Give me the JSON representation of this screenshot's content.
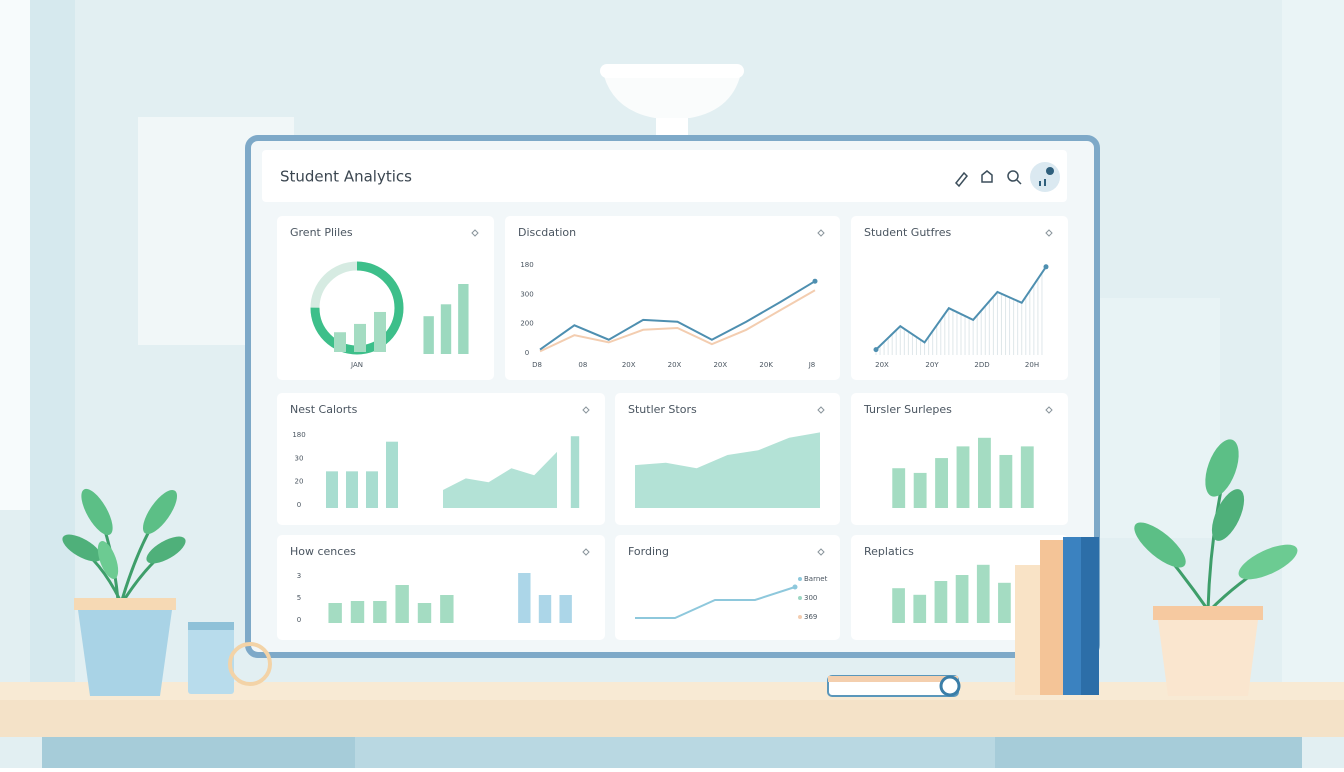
{
  "header": {
    "title": "Student Analytics"
  },
  "panels": [
    {
      "title": "Grent Pliles",
      "x_labels": [
        "JAN"
      ],
      "plots": [
        {
          "type": "donut",
          "value": 75,
          "color": "#3dbf8a"
        },
        {
          "type": "bars",
          "values": [
            38,
            54,
            77
          ],
          "color": "#a4dcc2"
        },
        {
          "type": "bars",
          "values": [
            54,
            71,
            100
          ],
          "color": "#9cd9bf"
        }
      ]
    },
    {
      "title": "Discdation",
      "y_labels": [
        "180",
        "300",
        "200",
        "0"
      ],
      "x_labels": [
        "D8",
        "08",
        "20X",
        "20X",
        "20X",
        "20K",
        "J8"
      ],
      "plots": [
        {
          "type": "line",
          "series": [
            {
              "color": "#f3cdb0",
              "values": [
                4,
                22,
                14,
                28,
                30,
                12,
                28,
                50,
                72
              ]
            },
            {
              "color": "#4e8fb0",
              "values": [
                6,
                33,
                17,
                39,
                37,
                17,
                37,
                59,
                82
              ]
            }
          ]
        }
      ]
    },
    {
      "title": "Student Gutfres",
      "x_labels": [
        "20X",
        "20Y",
        "2DD",
        "20H"
      ],
      "plots": [
        {
          "type": "line",
          "drop": true,
          "series": [
            {
              "color": "#4e8fb0",
              "values": [
                6,
                32,
                14,
                52,
                39,
                70,
                58,
                98
              ]
            }
          ]
        }
      ]
    },
    {
      "title": "Nest Calorts",
      "y_labels": [
        "180",
        "30",
        "20",
        "0"
      ],
      "plots": [
        {
          "type": "bars",
          "values": [
            47,
            47,
            47,
            85
          ],
          "color": "#a8ddd0"
        },
        {
          "type": "area",
          "values": [
            23,
            38,
            33,
            51,
            42,
            72
          ],
          "color": "#b3e2d6"
        },
        {
          "type": "bars",
          "values": [
            92
          ],
          "color": "#a8ddd0"
        }
      ]
    },
    {
      "title": "Stutler Stors",
      "plots": [
        {
          "type": "area",
          "values": [
            55,
            58,
            51,
            68,
            74,
            90,
            97
          ],
          "color": "#b3e2d6"
        }
      ]
    },
    {
      "title": "Tursler Surlepes",
      "plots": [
        {
          "type": "bars",
          "values": [
            51,
            45,
            64,
            79,
            90,
            68,
            79
          ],
          "color": "#a4dcc2"
        }
      ]
    },
    {
      "title": "How cences",
      "y_labels": [
        "3",
        "5",
        "0"
      ],
      "plots": [
        {
          "type": "bars",
          "values": [
            40,
            44,
            44,
            76,
            40,
            56
          ],
          "color": "#a4dcc2"
        },
        {
          "type": "bars",
          "values": [
            100,
            56,
            56
          ],
          "color": "#acd6e8"
        }
      ]
    },
    {
      "title": "Fording",
      "legend": [
        "Barnet",
        "300",
        "369"
      ],
      "plots": [
        {
          "type": "line",
          "series": [
            {
              "color": "#8ec8dc",
              "values": [
                14,
                14,
                50,
                50,
                76
              ]
            }
          ]
        }
      ]
    },
    {
      "title": "Replatics",
      "plots": [
        {
          "type": "bars",
          "values": [
            58,
            47,
            70,
            80,
            97,
            67
          ],
          "color": "#a4dcc2"
        }
      ]
    }
  ]
}
